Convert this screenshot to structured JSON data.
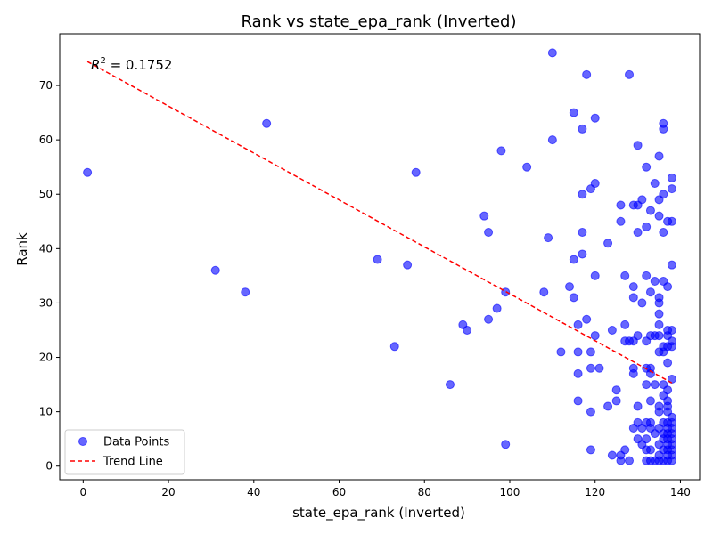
{
  "chart_data": {
    "type": "scatter",
    "title": "Rank vs state_epa_rank (Inverted)",
    "xlabel": "state_epa_rank (Inverted)",
    "ylabel": "Rank",
    "xlim": [
      -5.5,
      144.5
    ],
    "ylim": [
      -2.5,
      79.5
    ],
    "xticks": [
      0,
      20,
      40,
      60,
      80,
      100,
      120,
      140
    ],
    "yticks": [
      0,
      10,
      20,
      30,
      40,
      50,
      60,
      70
    ],
    "grid": false,
    "legend_position": "lower-left",
    "annotation": {
      "r2_label": "R² = 0.1752",
      "r2_var": "R",
      "r2_exp": "2",
      "r2_value_text": " = 0.1752"
    },
    "series": [
      {
        "name": "Data Points",
        "kind": "scatter",
        "color": "#0000ff",
        "points": [
          [
            1,
            54
          ],
          [
            31,
            36
          ],
          [
            38,
            32
          ],
          [
            43,
            63
          ],
          [
            69,
            38
          ],
          [
            73,
            22
          ],
          [
            76,
            37
          ],
          [
            78,
            54
          ],
          [
            86,
            15
          ],
          [
            89,
            26
          ],
          [
            90,
            25
          ],
          [
            94,
            46
          ],
          [
            95,
            43
          ],
          [
            95,
            27
          ],
          [
            97,
            29
          ],
          [
            98,
            58
          ],
          [
            99,
            32
          ],
          [
            99,
            4
          ],
          [
            104,
            55
          ],
          [
            108,
            32
          ],
          [
            109,
            42
          ],
          [
            110,
            76
          ],
          [
            110,
            60
          ],
          [
            112,
            21
          ],
          [
            114,
            33
          ],
          [
            115,
            65
          ],
          [
            115,
            38
          ],
          [
            115,
            31
          ],
          [
            116,
            26
          ],
          [
            116,
            21
          ],
          [
            116,
            17
          ],
          [
            116,
            12
          ],
          [
            117,
            62
          ],
          [
            117,
            50
          ],
          [
            117,
            43
          ],
          [
            117,
            39
          ],
          [
            118,
            72
          ],
          [
            118,
            27
          ],
          [
            119,
            51
          ],
          [
            119,
            21
          ],
          [
            119,
            18
          ],
          [
            119,
            10
          ],
          [
            119,
            3
          ],
          [
            120,
            64
          ],
          [
            120,
            52
          ],
          [
            120,
            35
          ],
          [
            120,
            24
          ],
          [
            121,
            18
          ],
          [
            123,
            41
          ],
          [
            123,
            11
          ],
          [
            124,
            25
          ],
          [
            124,
            2
          ],
          [
            125,
            14
          ],
          [
            125,
            12
          ],
          [
            126,
            48
          ],
          [
            126,
            45
          ],
          [
            126,
            2
          ],
          [
            126,
            1
          ],
          [
            127,
            35
          ],
          [
            127,
            26
          ],
          [
            127,
            23
          ],
          [
            127,
            3
          ],
          [
            128,
            72
          ],
          [
            128,
            23
          ],
          [
            128,
            1
          ],
          [
            129,
            48
          ],
          [
            129,
            33
          ],
          [
            129,
            31
          ],
          [
            129,
            23
          ],
          [
            129,
            18
          ],
          [
            129,
            17
          ],
          [
            129,
            7
          ],
          [
            130,
            59
          ],
          [
            130,
            48
          ],
          [
            130,
            43
          ],
          [
            130,
            24
          ],
          [
            130,
            11
          ],
          [
            130,
            8
          ],
          [
            130,
            5
          ],
          [
            131,
            49
          ],
          [
            131,
            30
          ],
          [
            131,
            7
          ],
          [
            131,
            4
          ],
          [
            132,
            55
          ],
          [
            132,
            44
          ],
          [
            132,
            35
          ],
          [
            132,
            23
          ],
          [
            132,
            18
          ],
          [
            132,
            15
          ],
          [
            132,
            8
          ],
          [
            132,
            5
          ],
          [
            132,
            3
          ],
          [
            132,
            1
          ],
          [
            133,
            47
          ],
          [
            133,
            32
          ],
          [
            133,
            24
          ],
          [
            133,
            18
          ],
          [
            133,
            17
          ],
          [
            133,
            12
          ],
          [
            133,
            8
          ],
          [
            133,
            7
          ],
          [
            133,
            3
          ],
          [
            133,
            1
          ],
          [
            134,
            52
          ],
          [
            134,
            34
          ],
          [
            134,
            24
          ],
          [
            134,
            15
          ],
          [
            134,
            6
          ],
          [
            134,
            1
          ],
          [
            135,
            57
          ],
          [
            135,
            49
          ],
          [
            135,
            46
          ],
          [
            135,
            31
          ],
          [
            135,
            30
          ],
          [
            135,
            28
          ],
          [
            135,
            26
          ],
          [
            135,
            24
          ],
          [
            135,
            21
          ],
          [
            135,
            11
          ],
          [
            135,
            10
          ],
          [
            135,
            7
          ],
          [
            135,
            4
          ],
          [
            135,
            2
          ],
          [
            135,
            1
          ],
          [
            136,
            63
          ],
          [
            136,
            62
          ],
          [
            136,
            50
          ],
          [
            136,
            43
          ],
          [
            136,
            34
          ],
          [
            136,
            22
          ],
          [
            136,
            21
          ],
          [
            136,
            15
          ],
          [
            136,
            13
          ],
          [
            136,
            8
          ],
          [
            136,
            6
          ],
          [
            136,
            5
          ],
          [
            136,
            3
          ],
          [
            136,
            1
          ],
          [
            137,
            45
          ],
          [
            137,
            33
          ],
          [
            137,
            25
          ],
          [
            137,
            24
          ],
          [
            137,
            22
          ],
          [
            137,
            19
          ],
          [
            137,
            14
          ],
          [
            137,
            12
          ],
          [
            137,
            11
          ],
          [
            137,
            10
          ],
          [
            137,
            8
          ],
          [
            137,
            7
          ],
          [
            137,
            6
          ],
          [
            137,
            5
          ],
          [
            137,
            4
          ],
          [
            137,
            3
          ],
          [
            137,
            2
          ],
          [
            137,
            1
          ],
          [
            138,
            53
          ],
          [
            138,
            51
          ],
          [
            138,
            45
          ],
          [
            138,
            37
          ],
          [
            138,
            25
          ],
          [
            138,
            23
          ],
          [
            138,
            22
          ],
          [
            138,
            16
          ],
          [
            138,
            9
          ],
          [
            138,
            8
          ],
          [
            138,
            7
          ],
          [
            138,
            6
          ],
          [
            138,
            5
          ],
          [
            138,
            4
          ],
          [
            138,
            3
          ],
          [
            138,
            2
          ],
          [
            138,
            1
          ]
        ]
      },
      {
        "name": "Trend Line",
        "kind": "line",
        "color": "#ff0000",
        "dash": "dashed",
        "points": [
          [
            1,
            74.4
          ],
          [
            138,
            15.3
          ]
        ]
      }
    ]
  }
}
